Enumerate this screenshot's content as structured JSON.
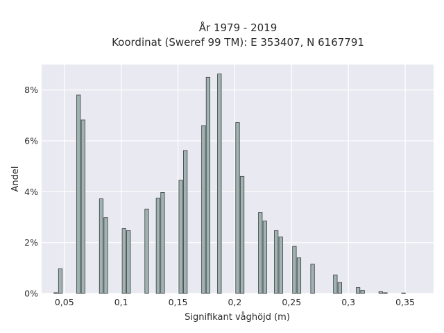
{
  "chart_data": {
    "type": "bar",
    "title_lines": [
      "År 1979 - 2019",
      "Koordinat (Sweref 99 TM): E 353407, N 6167791"
    ],
    "xlabel": "Signifikant våghöjd (m)",
    "ylabel": "Andel",
    "xlim": [
      0.03,
      0.375
    ],
    "ylim": [
      0,
      9.0
    ],
    "x_ticks": [
      {
        "value": 0.05,
        "label": "0,05"
      },
      {
        "value": 0.1,
        "label": "0,1"
      },
      {
        "value": 0.15,
        "label": "0,15"
      },
      {
        "value": 0.2,
        "label": "0,2"
      },
      {
        "value": 0.25,
        "label": "0,25"
      },
      {
        "value": 0.3,
        "label": "0,3"
      },
      {
        "value": 0.35,
        "label": "0,35"
      }
    ],
    "y_ticks": [
      {
        "value": 0,
        "label": "0%"
      },
      {
        "value": 2,
        "label": "2%"
      },
      {
        "value": 4,
        "label": "4%"
      },
      {
        "value": 6,
        "label": "6%"
      },
      {
        "value": 8,
        "label": "8%"
      }
    ],
    "bar_width": 0.0033,
    "x": [
      0.0425,
      0.0465,
      0.0625,
      0.0665,
      0.0825,
      0.0865,
      0.1025,
      0.1065,
      0.1225,
      0.1325,
      0.1365,
      0.1525,
      0.1565,
      0.1725,
      0.1765,
      0.1865,
      0.2025,
      0.2065,
      0.2225,
      0.2265,
      0.2365,
      0.2405,
      0.2525,
      0.2565,
      0.2685,
      0.2885,
      0.2925,
      0.3085,
      0.3125,
      0.3285,
      0.3325,
      0.3485
    ],
    "values": [
      0.03,
      0.97,
      7.8,
      6.82,
      3.72,
      2.98,
      2.55,
      2.47,
      3.32,
      3.75,
      3.97,
      4.45,
      5.62,
      6.6,
      8.5,
      8.63,
      6.72,
      4.6,
      3.18,
      2.85,
      2.47,
      2.22,
      1.85,
      1.4,
      1.15,
      0.73,
      0.43,
      0.23,
      0.12,
      0.07,
      0.03,
      0.02
    ],
    "grid": true,
    "colors": {
      "bar": "#9fb3b3",
      "bar_edge": "#3b3b3b",
      "plot_bg": "#e9e9f1",
      "grid": "#ffffff"
    }
  }
}
